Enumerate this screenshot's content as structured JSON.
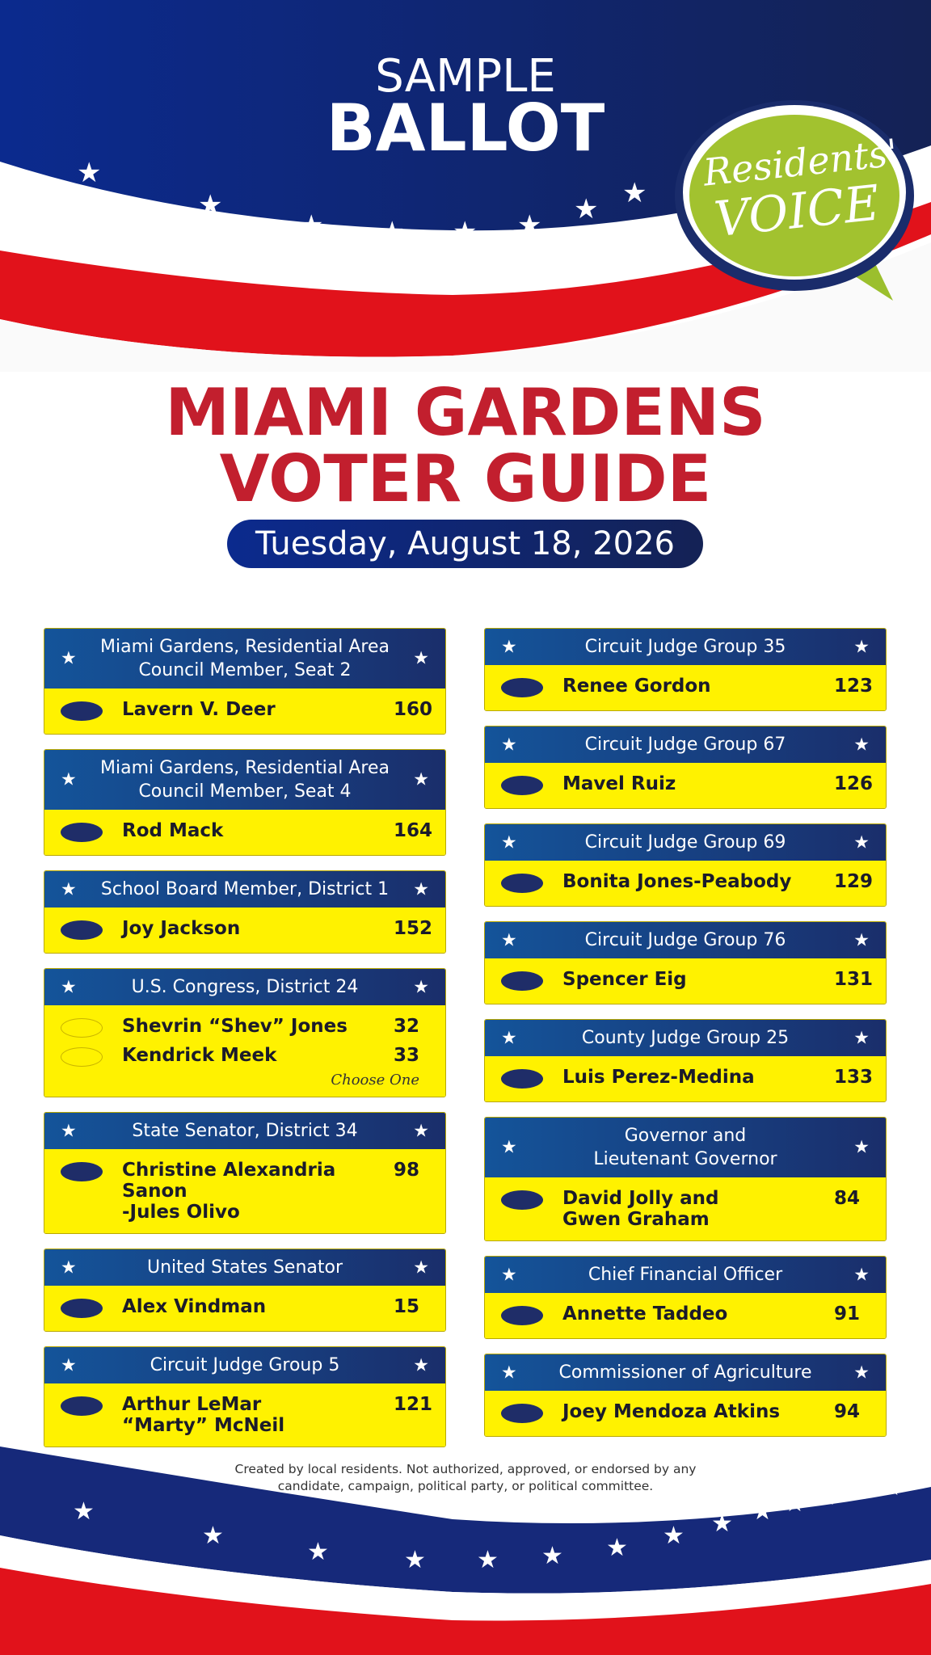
{
  "header": {
    "sample": "SAMPLE",
    "ballot": "BALLOT",
    "badge": [
      "Residents'",
      "VOICE"
    ],
    "title": [
      "MIAMI GARDENS",
      "VOTER GUIDE"
    ],
    "date": "Tuesday, August 18, 2026"
  },
  "columns": [
    [
      {
        "title": [
          "Miami Gardens, Residential Area",
          "Council Member, Seat 2"
        ],
        "candidates": [
          {
            "name": [
              "Lavern V. Deer"
            ],
            "number": 160
          }
        ]
      },
      {
        "title": [
          "Miami Gardens, Residential Area",
          "Council Member, Seat 4"
        ],
        "candidates": [
          {
            "name": [
              "Rod Mack"
            ],
            "number": 164
          }
        ]
      },
      {
        "title": [
          "School Board Member, District 1"
        ],
        "candidates": [
          {
            "name": [
              "Joy Jackson"
            ],
            "number": 152
          }
        ]
      },
      {
        "title": [
          "U.S. Congress, District 24"
        ],
        "candidates": [
          {
            "name": [
              "Shevrin “Shev” Jones"
            ],
            "number": 32
          },
          {
            "name": [
              "Kendrick Meek"
            ],
            "number": 33
          }
        ],
        "note": "Choose One"
      },
      {
        "title": [
          "State Senator, District 34"
        ],
        "candidates": [
          {
            "name": [
              "Christine Alexandria Sanon",
              "-Jules Olivo"
            ],
            "number": 98
          }
        ]
      },
      {
        "title": [
          "United States Senator"
        ],
        "candidates": [
          {
            "name": [
              "Alex Vindman"
            ],
            "number": 15
          }
        ]
      },
      {
        "title": [
          "Circuit Judge Group 5"
        ],
        "candidates": [
          {
            "name": [
              "Arthur LeMar",
              "“Marty” McNeil"
            ],
            "number": 121
          }
        ]
      }
    ],
    [
      {
        "title": [
          "Circuit Judge  Group 35"
        ],
        "candidates": [
          {
            "name": [
              "Renee Gordon"
            ],
            "number": 123
          }
        ]
      },
      {
        "title": [
          "Circuit Judge Group 67"
        ],
        "candidates": [
          {
            "name": [
              "Mavel Ruiz"
            ],
            "number": 126
          }
        ]
      },
      {
        "title": [
          "Circuit Judge Group 69"
        ],
        "candidates": [
          {
            "name": [
              "Bonita Jones-Peabody"
            ],
            "number": 129
          }
        ]
      },
      {
        "title": [
          "Circuit Judge Group 76"
        ],
        "candidates": [
          {
            "name": [
              "Spencer Eig"
            ],
            "number": 131
          }
        ]
      },
      {
        "title": [
          "County Judge Group 25"
        ],
        "candidates": [
          {
            "name": [
              "Luis Perez-Medina"
            ],
            "number": 133
          }
        ]
      },
      {
        "title": [
          "Governor and",
          "Lieutenant Governor"
        ],
        "candidates": [
          {
            "name": [
              "David Jolly and",
              "Gwen Graham"
            ],
            "number": 84
          }
        ]
      },
      {
        "title": [
          "Chief Financial Officer"
        ],
        "candidates": [
          {
            "name": [
              "Annette Taddeo"
            ],
            "number": 91
          }
        ]
      },
      {
        "title": [
          "Commissioner of Agriculture"
        ],
        "candidates": [
          {
            "name": [
              "Joey Mendoza Atkins"
            ],
            "number": 94
          }
        ]
      }
    ]
  ],
  "footer": [
    "Created by local residents. Not authorized, approved, or endorsed by any",
    "candidate, campaign, political party, or political committee."
  ]
}
